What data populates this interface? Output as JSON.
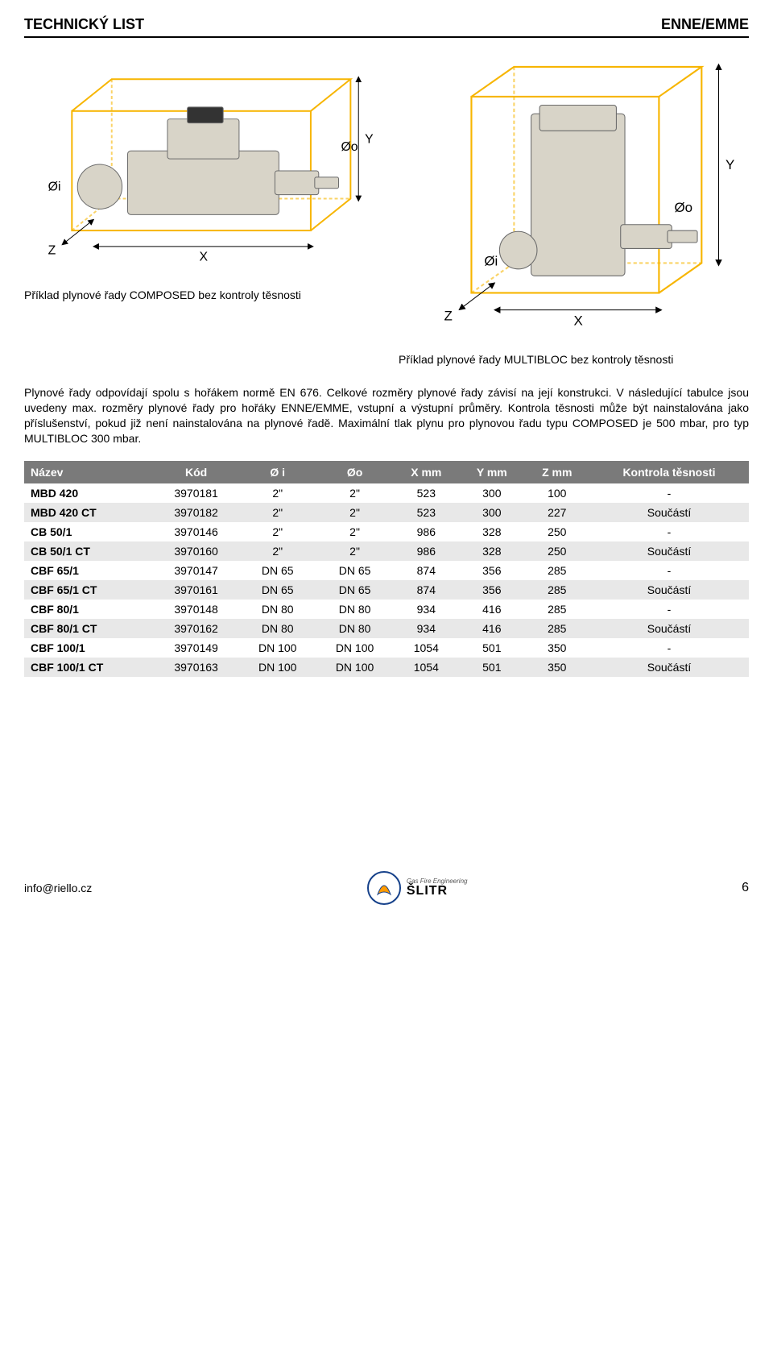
{
  "header": {
    "left": "TECHNICKÝ LIST",
    "right": "ENNE/EMME"
  },
  "diagrams": {
    "left_caption": "Příklad plynové řady COMPOSED bez kontroly těsnosti",
    "right_caption": "Příklad plynové řady MULTIBLOC bez kontroly těsnosti",
    "dim_labels": {
      "oi": "Øi",
      "oo": "Øo",
      "x": "X",
      "y": "Y",
      "z": "Z"
    },
    "box_line_color": "#f7b500",
    "box_line_width": 2,
    "arrow_color": "#000000",
    "device_fill": "#d8d4c8",
    "device_stroke": "#6b6b6b"
  },
  "body_text": "Plynové řady odpovídají spolu s hořákem normě EN 676.\nCelkové rozměry plynové řady závisí na její konstrukci. V následující tabulce jsou uvedeny max. rozměry plynové řady pro hořáky ENNE/EMME, vstupní a výstupní průměry. Kontrola těsnosti může být nainstalována jako příslušenství, pokud již není nainstalována na plynové řadě. Maximální tlak plynu pro plynovou řadu typu COMPOSED je 500 mbar, pro typ MULTIBLOC 300 mbar.",
  "table": {
    "header_bg": "#7a7a7a",
    "header_fg": "#ffffff",
    "row_even_bg": "#e8e8e8",
    "row_odd_bg": "#ffffff",
    "columns": [
      "Název",
      "Kód",
      "Ø i",
      "Øo",
      "X mm",
      "Y mm",
      "Z mm",
      "Kontrola těsnosti"
    ],
    "rows": [
      [
        "MBD 420",
        "3970181",
        "2\"",
        "2\"",
        "523",
        "300",
        "100",
        "-"
      ],
      [
        "MBD 420 CT",
        "3970182",
        "2\"",
        "2\"",
        "523",
        "300",
        "227",
        "Součástí"
      ],
      [
        "CB 50/1",
        "3970146",
        "2\"",
        "2\"",
        "986",
        "328",
        "250",
        "-"
      ],
      [
        "CB 50/1 CT",
        "3970160",
        "2\"",
        "2\"",
        "986",
        "328",
        "250",
        "Součástí"
      ],
      [
        "CBF 65/1",
        "3970147",
        "DN 65",
        "DN 65",
        "874",
        "356",
        "285",
        "-"
      ],
      [
        "CBF 65/1 CT",
        "3970161",
        "DN 65",
        "DN 65",
        "874",
        "356",
        "285",
        "Součástí"
      ],
      [
        "CBF 80/1",
        "3970148",
        "DN 80",
        "DN 80",
        "934",
        "416",
        "285",
        "-"
      ],
      [
        "CBF 80/1 CT",
        "3970162",
        "DN 80",
        "DN 80",
        "934",
        "416",
        "285",
        "Součástí"
      ],
      [
        "CBF 100/1",
        "3970149",
        "DN 100",
        "DN 100",
        "1054",
        "501",
        "350",
        "-"
      ],
      [
        "CBF 100/1 CT",
        "3970163",
        "DN 100",
        "DN 100",
        "1054",
        "501",
        "350",
        "Součástí"
      ]
    ]
  },
  "footer": {
    "email": "info@riello.cz",
    "logo_tag": "Gas Fire Engineering",
    "logo_brand": "ŠLITR",
    "page_number": "6"
  }
}
